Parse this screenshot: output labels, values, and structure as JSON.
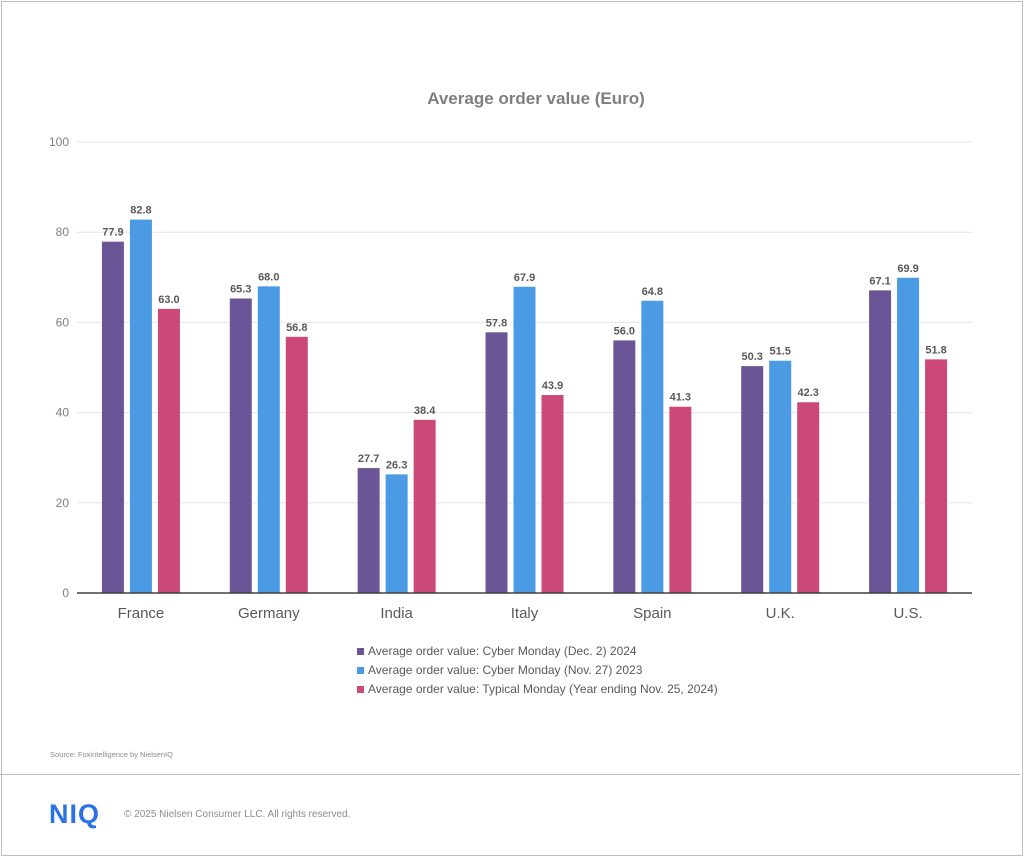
{
  "chart_data": {
    "type": "bar",
    "title": "Average order value (Euro)",
    "xlabel": "",
    "ylabel": "",
    "ylim": [
      0,
      100
    ],
    "yticks": [
      0,
      20,
      40,
      60,
      80,
      100
    ],
    "grid": true,
    "legend_position": "bottom",
    "categories": [
      "France",
      "Germany",
      "India",
      "Italy",
      "Spain",
      "U.K.",
      "U.S."
    ],
    "series": [
      {
        "name": "Average order value: Cyber Monday (Dec. 2) 2024",
        "color": "#6a5596",
        "values": [
          77.9,
          65.3,
          27.7,
          57.8,
          56.0,
          50.3,
          67.1
        ]
      },
      {
        "name": "Average order value: Cyber Monday (Nov. 27) 2023",
        "color": "#4a9be3",
        "values": [
          82.8,
          68.0,
          26.3,
          67.9,
          64.8,
          51.5,
          69.9
        ]
      },
      {
        "name": "Average order value: Typical Monday (Year ending Nov. 25, 2024)",
        "color": "#cc4879",
        "values": [
          63.0,
          56.8,
          38.4,
          43.9,
          41.3,
          42.3,
          51.8
        ]
      }
    ]
  },
  "footer": {
    "source": "Source: Foxintelligence by NielsenIQ",
    "logo_text": "NIQ",
    "copyright": "© 2025 Nielsen Consumer LLC. All rights reserved."
  }
}
